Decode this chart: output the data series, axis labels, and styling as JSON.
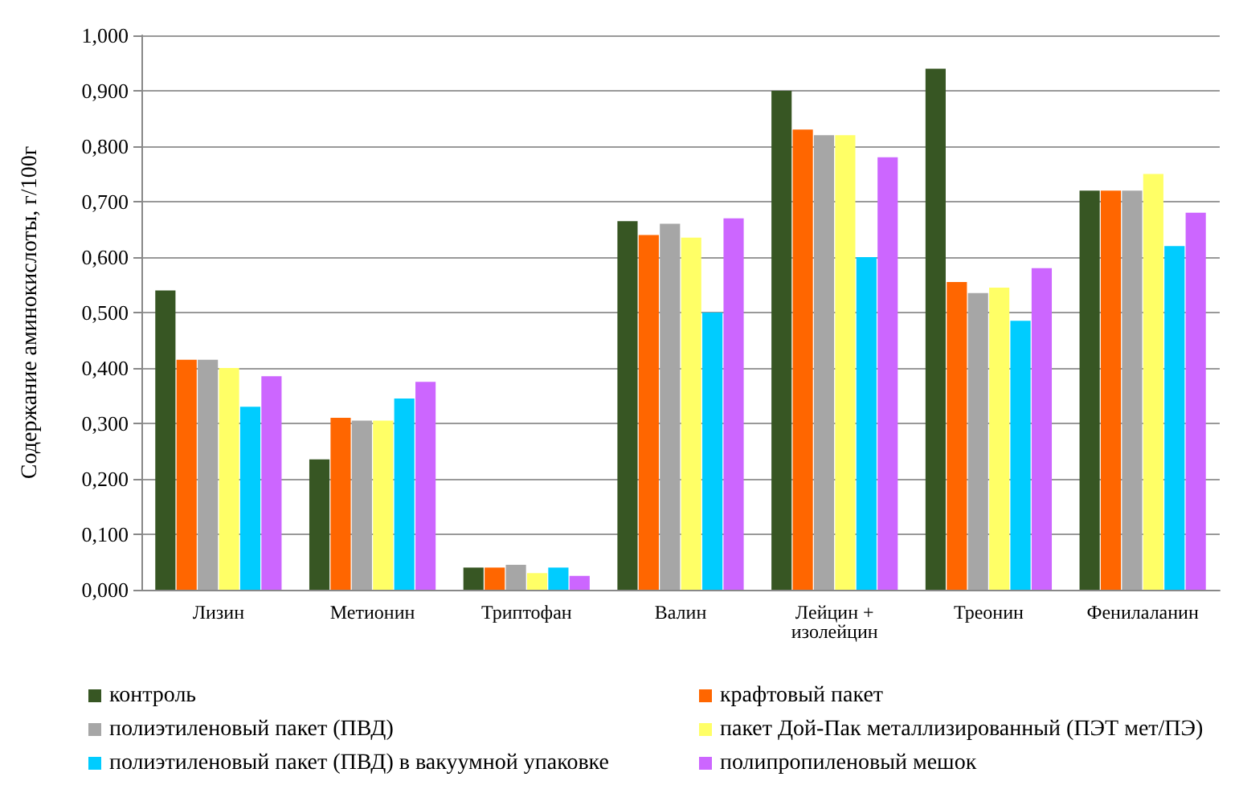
{
  "chart_data": {
    "type": "bar",
    "ylabel": "Содержание аминокислоты, г/100г",
    "categories": [
      "Лизин",
      "Метионин",
      "Триптофан",
      "Валин",
      "Лейцин + изолейцин",
      "Треонин",
      "Фенилаланин"
    ],
    "series": [
      {
        "name": "контроль",
        "color": "#375623",
        "values": [
          0.54,
          0.235,
          0.04,
          0.665,
          0.9,
          0.94,
          0.72
        ]
      },
      {
        "name": "крафтовый пакет",
        "color": "#ff6600",
        "values": [
          0.415,
          0.31,
          0.04,
          0.64,
          0.83,
          0.555,
          0.72
        ]
      },
      {
        "name": "полиэтиленовый пакет (ПВД)",
        "color": "#a6a6a6",
        "values": [
          0.415,
          0.305,
          0.045,
          0.66,
          0.82,
          0.535,
          0.72
        ]
      },
      {
        "name": "пакет Дой-Пак металлизированный (ПЭТ мет/ПЭ)",
        "color": "#ffff66",
        "values": [
          0.4,
          0.305,
          0.03,
          0.635,
          0.82,
          0.545,
          0.75
        ]
      },
      {
        "name": "полиэтиленовый пакет (ПВД) в вакуумной упаковке",
        "color": "#00ccff",
        "values": [
          0.33,
          0.345,
          0.04,
          0.5,
          0.6,
          0.485,
          0.62
        ]
      },
      {
        "name": "полипропиленовый мешок",
        "color": "#cc66ff",
        "values": [
          0.385,
          0.375,
          0.025,
          0.67,
          0.78,
          0.58,
          0.68
        ]
      }
    ],
    "ylim": [
      0,
      1
    ],
    "yticks": [
      {
        "value": 0,
        "label": "0,000"
      },
      {
        "value": 0.1,
        "label": "0,100"
      },
      {
        "value": 0.2,
        "label": "0,200"
      },
      {
        "value": 0.3,
        "label": "0,300"
      },
      {
        "value": 0.4,
        "label": "0,400"
      },
      {
        "value": 0.5,
        "label": "0,500"
      },
      {
        "value": 0.6,
        "label": "0,600"
      },
      {
        "value": 0.7,
        "label": "0,700"
      },
      {
        "value": 0.8,
        "label": "0,800"
      },
      {
        "value": 0.9,
        "label": "0,900"
      },
      {
        "value": 1,
        "label": "1,000"
      }
    ],
    "grid": "y",
    "legend": "bottom"
  }
}
